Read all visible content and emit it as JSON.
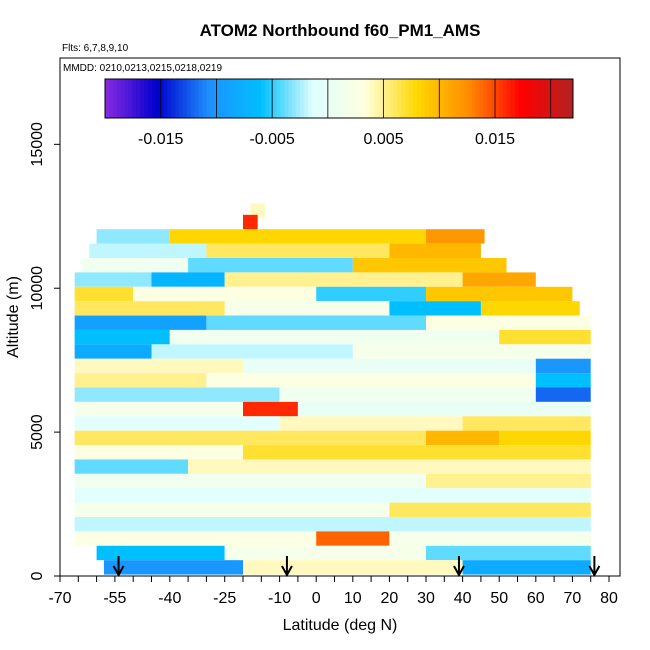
{
  "chart_data": {
    "type": "heatmap",
    "title": "ATOM2 Northbound f60_PM1_AMS",
    "subtitle_flights": "Flts: 6,7,8,9,10",
    "subtitle_dates": "MMDD: 0210,0213,0215,0218,0219",
    "xlabel": "Latitude (deg N)",
    "ylabel": "Altitude (m)",
    "xlim": [
      -70,
      83
    ],
    "ylim": [
      0,
      18000
    ],
    "x_ticks": [
      -70,
      -55,
      -40,
      -25,
      -10,
      0,
      10,
      20,
      30,
      40,
      50,
      60,
      70,
      80
    ],
    "x_tick_labels": [
      "-70",
      "-55",
      "-40",
      "-25",
      "-10",
      "0",
      "10",
      "20",
      "30",
      "40",
      "50",
      "60",
      "70",
      "80"
    ],
    "y_ticks": [
      0,
      5000,
      10000,
      15000
    ],
    "y_tick_labels": [
      "0",
      "5000",
      "10000",
      "15000"
    ],
    "colorbar": {
      "range": [
        -0.02,
        0.022
      ],
      "tick_values": [
        -0.015,
        -0.005,
        0.005,
        0.015
      ],
      "tick_labels": [
        "-0.015",
        "-0.005",
        "0.005",
        "0.015"
      ],
      "colors": [
        "#8a2be2",
        "#0000cd",
        "#1e90ff",
        "#00bfff",
        "#e0ffff",
        "#ffffe0",
        "#ffd700",
        "#ff8c00",
        "#ff0000",
        "#b22222"
      ]
    },
    "arrow_latitudes": [
      -54,
      -8,
      39,
      76
    ],
    "layers": [
      {
        "alt": 12700,
        "x0": -18,
        "x1": -14,
        "value": 0.004
      },
      {
        "alt": 12300,
        "x0": -20,
        "x1": -16,
        "value": 0.016
      },
      {
        "alt": 11800,
        "x0": -60,
        "x1": -40,
        "value": -0.003
      },
      {
        "alt": 11800,
        "x0": -40,
        "x1": 30,
        "value": 0.008
      },
      {
        "alt": 11800,
        "x0": 30,
        "x1": 46,
        "value": 0.012
      },
      {
        "alt": 11300,
        "x0": -62,
        "x1": -30,
        "value": -0.002
      },
      {
        "alt": 11300,
        "x0": -30,
        "x1": 20,
        "value": 0.006
      },
      {
        "alt": 11300,
        "x0": 20,
        "x1": 45,
        "value": 0.01
      },
      {
        "alt": 10800,
        "x0": -64,
        "x1": -35,
        "value": 0.001
      },
      {
        "alt": 10800,
        "x0": -35,
        "x1": 10,
        "value": -0.004
      },
      {
        "alt": 10800,
        "x0": 10,
        "x1": 52,
        "value": 0.009
      },
      {
        "alt": 10300,
        "x0": -66,
        "x1": -45,
        "value": -0.003
      },
      {
        "alt": 10300,
        "x0": -45,
        "x1": -25,
        "value": -0.007
      },
      {
        "alt": 10300,
        "x0": -25,
        "x1": 40,
        "value": 0.005
      },
      {
        "alt": 10300,
        "x0": 40,
        "x1": 60,
        "value": 0.011
      },
      {
        "alt": 9800,
        "x0": -66,
        "x1": -50,
        "value": 0.007
      },
      {
        "alt": 9800,
        "x0": -50,
        "x1": 0,
        "value": 0.003
      },
      {
        "alt": 9800,
        "x0": 0,
        "x1": 30,
        "value": -0.005
      },
      {
        "alt": 9800,
        "x0": 30,
        "x1": 70,
        "value": 0.009
      },
      {
        "alt": 9300,
        "x0": -66,
        "x1": -25,
        "value": 0.006
      },
      {
        "alt": 9300,
        "x0": -25,
        "x1": 20,
        "value": 0.002
      },
      {
        "alt": 9300,
        "x0": 20,
        "x1": 45,
        "value": -0.006
      },
      {
        "alt": 9300,
        "x0": 45,
        "x1": 72,
        "value": 0.008
      },
      {
        "alt": 8800,
        "x0": -66,
        "x1": -30,
        "value": -0.009
      },
      {
        "alt": 8800,
        "x0": -30,
        "x1": 30,
        "value": -0.004
      },
      {
        "alt": 8800,
        "x0": 30,
        "x1": 75,
        "value": 0.003
      },
      {
        "alt": 8300,
        "x0": -66,
        "x1": -40,
        "value": -0.006
      },
      {
        "alt": 8300,
        "x0": -40,
        "x1": 50,
        "value": 0.001
      },
      {
        "alt": 8300,
        "x0": 50,
        "x1": 75,
        "value": 0.007
      },
      {
        "alt": 7800,
        "x0": -66,
        "x1": -45,
        "value": -0.008
      },
      {
        "alt": 7800,
        "x0": -45,
        "x1": 10,
        "value": -0.002
      },
      {
        "alt": 7800,
        "x0": 10,
        "x1": 75,
        "value": 0.002
      },
      {
        "alt": 7300,
        "x0": -66,
        "x1": -20,
        "value": 0.004
      },
      {
        "alt": 7300,
        "x0": -20,
        "x1": 60,
        "value": 0.0
      },
      {
        "alt": 7300,
        "x0": 60,
        "x1": 75,
        "value": -0.01
      },
      {
        "alt": 6800,
        "x0": -66,
        "x1": -30,
        "value": 0.005
      },
      {
        "alt": 6800,
        "x0": -30,
        "x1": 60,
        "value": 0.003
      },
      {
        "alt": 6800,
        "x0": 60,
        "x1": 75,
        "value": -0.006
      },
      {
        "alt": 6300,
        "x0": -66,
        "x1": -10,
        "value": -0.003
      },
      {
        "alt": 6300,
        "x0": -10,
        "x1": 60,
        "value": 0.001
      },
      {
        "alt": 6300,
        "x0": 60,
        "x1": 75,
        "value": -0.012
      },
      {
        "alt": 5800,
        "x0": -66,
        "x1": -20,
        "value": 0.002
      },
      {
        "alt": 5800,
        "x0": -20,
        "x1": -5,
        "value": 0.016
      },
      {
        "alt": 5800,
        "x0": -5,
        "x1": 75,
        "value": 0.0
      },
      {
        "alt": 5300,
        "x0": -66,
        "x1": -10,
        "value": -0.001
      },
      {
        "alt": 5300,
        "x0": -10,
        "x1": 40,
        "value": 0.004
      },
      {
        "alt": 5300,
        "x0": 40,
        "x1": 75,
        "value": 0.006
      },
      {
        "alt": 4800,
        "x0": -66,
        "x1": 30,
        "value": 0.006
      },
      {
        "alt": 4800,
        "x0": 30,
        "x1": 50,
        "value": 0.01
      },
      {
        "alt": 4800,
        "x0": 50,
        "x1": 75,
        "value": 0.008
      },
      {
        "alt": 4300,
        "x0": -66,
        "x1": -20,
        "value": 0.003
      },
      {
        "alt": 4300,
        "x0": -20,
        "x1": 75,
        "value": 0.007
      },
      {
        "alt": 3800,
        "x0": -66,
        "x1": -35,
        "value": -0.004
      },
      {
        "alt": 3800,
        "x0": -35,
        "x1": 75,
        "value": 0.004
      },
      {
        "alt": 3300,
        "x0": -66,
        "x1": 30,
        "value": 0.001
      },
      {
        "alt": 3300,
        "x0": 30,
        "x1": 75,
        "value": 0.005
      },
      {
        "alt": 2800,
        "x0": -66,
        "x1": 75,
        "value": -0.001
      },
      {
        "alt": 2300,
        "x0": -66,
        "x1": 20,
        "value": 0.002
      },
      {
        "alt": 2300,
        "x0": 20,
        "x1": 75,
        "value": 0.006
      },
      {
        "alt": 1800,
        "x0": -66,
        "x1": 75,
        "value": -0.002
      },
      {
        "alt": 1300,
        "x0": -66,
        "x1": 0,
        "value": 0.003
      },
      {
        "alt": 1300,
        "x0": 0,
        "x1": 20,
        "value": 0.014
      },
      {
        "alt": 1300,
        "x0": 20,
        "x1": 75,
        "value": 0.002
      },
      {
        "alt": 800,
        "x0": -60,
        "x1": -25,
        "value": -0.006
      },
      {
        "alt": 800,
        "x0": -25,
        "x1": 30,
        "value": 0.002
      },
      {
        "alt": 800,
        "x0": 30,
        "x1": 75,
        "value": -0.004
      },
      {
        "alt": 300,
        "x0": -58,
        "x1": -20,
        "value": -0.01
      },
      {
        "alt": 300,
        "x0": -20,
        "x1": 40,
        "value": 0.004
      },
      {
        "alt": 300,
        "x0": 40,
        "x1": 75,
        "value": -0.008
      }
    ]
  }
}
